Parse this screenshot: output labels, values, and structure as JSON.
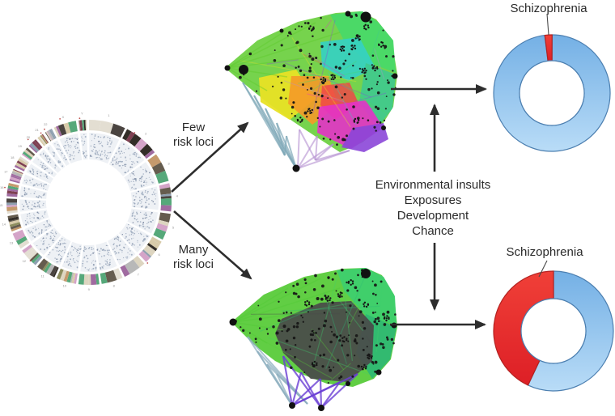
{
  "labels": {
    "few_risk_loci": [
      "Few",
      "risk loci"
    ],
    "many_risk_loci": [
      "Many",
      "risk loci"
    ],
    "environmental": [
      "Environmental insults",
      "Exposures",
      "Development",
      "Chance"
    ],
    "donut_top": "Schizophrenia",
    "donut_bottom": "Schizophrenia"
  },
  "colors": {
    "arrow": "#2d2d2d",
    "text": "#2a2a2a",
    "leader_line": "#4a4a4a",
    "donut_red": "#ee2726",
    "donut_blue": "#8fc0ee",
    "donut_outline": "#4c7fb0",
    "network_top_modules": [
      "#6fd143",
      "#49d968",
      "#35d0c4",
      "#3fc98f",
      "#e8e225",
      "#f59a28",
      "#f04848",
      "#e432c8",
      "#8b46d8",
      "#7fa8b8",
      "#b48fd0"
    ],
    "network_bottom_modules": [
      "#58cb3a",
      "#3ecf6e",
      "#2eb876",
      "#4a4a4a",
      "#6a3fd4",
      "#8fb0c0"
    ],
    "circos_ring_palette": [
      "#d8cbaa",
      "#332e28",
      "#8d8d5e",
      "#a06ba0",
      "#56a87a",
      "#d4a4c8",
      "#7e4052",
      "#b8b8b8",
      "#c59a6d",
      "#655c4e",
      "#ddd5c0",
      "#8fa0b0",
      "#e3ded2",
      "#4a4440"
    ],
    "circos_speckle": "#9aa8bc"
  },
  "circos": {
    "segments": [
      "1",
      "2",
      "3",
      "4",
      "5",
      "6",
      "7",
      "8",
      "9",
      "10",
      "11",
      "12",
      "13",
      "14",
      "15",
      "16",
      "17",
      "18",
      "19",
      "20",
      "21",
      "22",
      "X",
      "Y"
    ]
  },
  "chart_data": [
    {
      "type": "pie",
      "donut": true,
      "position": "top-right",
      "title": "Schizophrenia",
      "slices": [
        {
          "label": "Schizophrenia",
          "value": 2,
          "color": "#ee2726"
        },
        {
          "label": "unlabeled",
          "value": 98,
          "color": "#8fc0ee"
        }
      ],
      "start_deg": -7,
      "legend": "none"
    },
    {
      "type": "pie",
      "donut": true,
      "position": "bottom-right",
      "title": "Schizophrenia",
      "slices": [
        {
          "label": "unlabeled",
          "value": 57,
          "color": "#8fc0ee"
        },
        {
          "label": "Schizophrenia",
          "value": 43,
          "color": "#ee2726"
        }
      ],
      "start_deg": 0,
      "legend": "none"
    }
  ]
}
